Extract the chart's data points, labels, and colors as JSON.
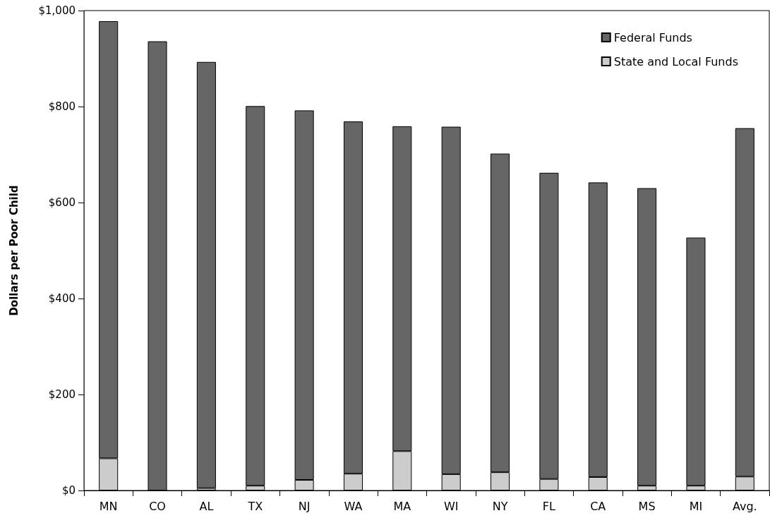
{
  "chart_data": {
    "type": "bar",
    "ylabel": "Dollars per Poor Child",
    "stacked": true,
    "legend": "top right",
    "grid": false,
    "categories": [
      "MN",
      "CO",
      "AL",
      "TX",
      "NJ",
      "WA",
      "MA",
      "WI",
      "NY",
      "FL",
      "CA",
      "MS",
      "MI",
      "Avg."
    ],
    "series": [
      {
        "name": "State and Local Funds",
        "color": "#cccccc",
        "values": [
          67,
          0,
          5,
          10,
          22,
          35,
          82,
          34,
          38,
          24,
          28,
          10,
          10,
          29
        ]
      },
      {
        "name": "Federal Funds",
        "color": "#666666",
        "values": [
          911,
          936,
          888,
          791,
          770,
          734,
          677,
          724,
          664,
          638,
          614,
          620,
          517,
          726
        ]
      }
    ],
    "ylim": [
      0,
      1000
    ],
    "yticks": [
      {
        "value": 0,
        "label": "$0"
      },
      {
        "value": 200,
        "label": "$200"
      },
      {
        "value": 400,
        "label": "$400"
      },
      {
        "value": 600,
        "label": "$600"
      },
      {
        "value": 800,
        "label": "$800"
      },
      {
        "value": 1000,
        "label": "$1,000"
      }
    ]
  }
}
